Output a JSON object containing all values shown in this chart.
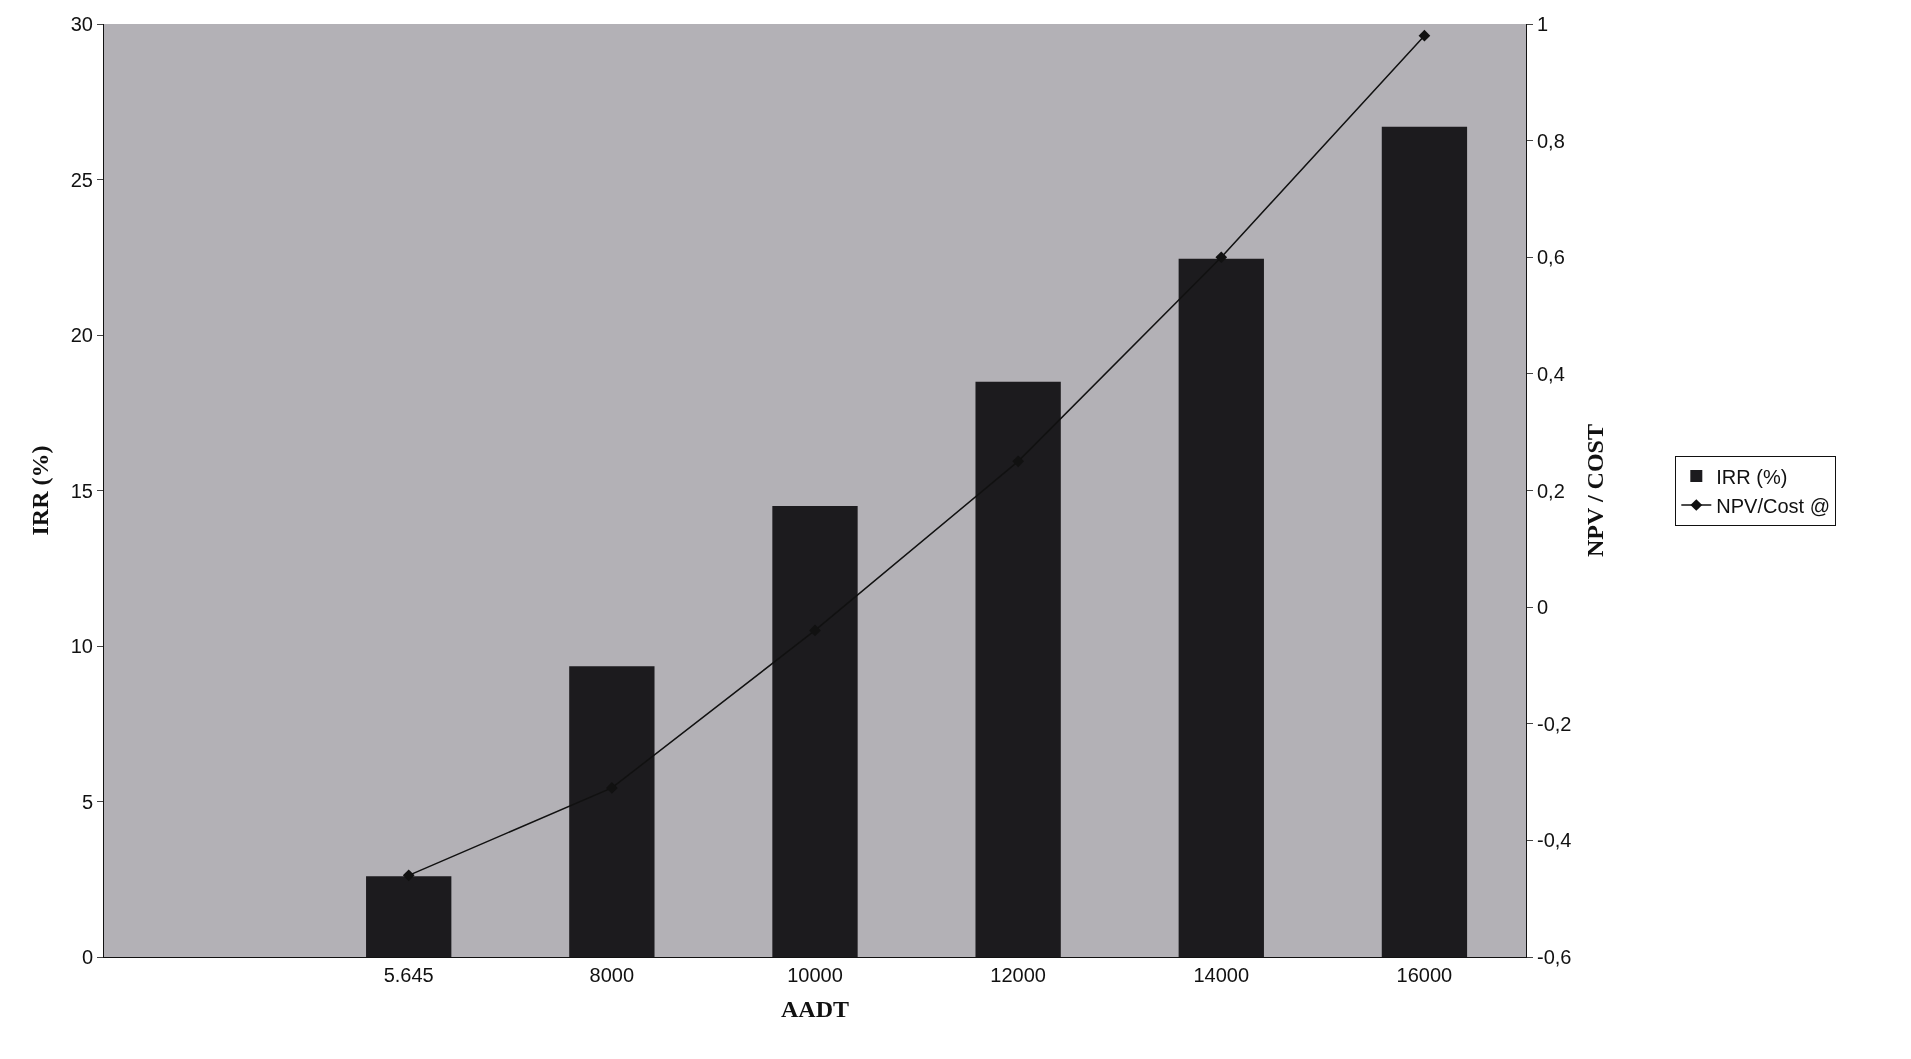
{
  "chart_data": {
    "type": "bar",
    "xlabel": "AADT",
    "ylabel": "IRR (%)",
    "y2label": "NPV / COST",
    "categories": [
      null,
      "5.645",
      "8000",
      "10000",
      "12000",
      "14000",
      "16000"
    ],
    "series": [
      {
        "name": "IRR (%)",
        "color": "#1c1b1e",
        "values": [
          null,
          2.6,
          9.35,
          14.5,
          18.5,
          22.45,
          26.7
        ]
      },
      {
        "name": "NPV/Cost @",
        "type": "line",
        "axis": "y2",
        "color": "#111111",
        "marker": "diamond",
        "line_style": "solid",
        "values": [
          null,
          -0.46,
          -0.31,
          -0.04,
          0.25,
          0.6,
          0.98
        ]
      }
    ],
    "ylim": [
      0,
      30
    ],
    "yticks": [
      0,
      5,
      10,
      15,
      20,
      25,
      30
    ],
    "y2lim": [
      -0.6,
      1
    ],
    "y2ticks": [
      {
        "value": -0.6,
        "label": "-0,6"
      },
      {
        "value": -0.4,
        "label": "-0,4"
      },
      {
        "value": -0.2,
        "label": "-0,2"
      },
      0,
      {
        "value": 0.2,
        "label": "0,2"
      },
      {
        "value": 0.4,
        "label": "0,4"
      },
      {
        "value": 0.6,
        "label": "0,6"
      },
      {
        "value": 0.8,
        "label": "0,8"
      },
      1
    ],
    "grid": false,
    "legend": "right"
  }
}
